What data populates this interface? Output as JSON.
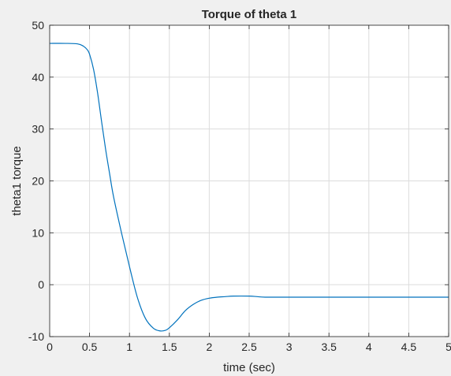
{
  "chart_data": {
    "type": "line",
    "title": "Torque of theta 1",
    "xlabel": "time (sec)",
    "ylabel": "theta1 torque",
    "xlim": [
      0,
      5
    ],
    "ylim": [
      -10,
      50
    ],
    "xticks": [
      0,
      0.5,
      1,
      1.5,
      2,
      2.5,
      3,
      3.5,
      4,
      4.5,
      5
    ],
    "xtick_labels": [
      "0",
      "0.5",
      "1",
      "1.5",
      "2",
      "2.5",
      "3",
      "3.5",
      "4",
      "4.5",
      "5"
    ],
    "yticks": [
      -10,
      0,
      10,
      20,
      30,
      40,
      50
    ],
    "ytick_labels": [
      "-10",
      "0",
      "10",
      "20",
      "30",
      "40",
      "50"
    ],
    "grid": true,
    "line_color": "#0072bd",
    "series": [
      {
        "x": [
          0,
          0.2,
          0.35,
          0.42,
          0.47,
          0.5,
          0.55,
          0.6,
          0.65,
          0.7,
          0.75,
          0.8,
          0.9,
          1.0,
          1.1,
          1.2,
          1.3,
          1.38,
          1.45,
          1.5,
          1.6,
          1.7,
          1.8,
          1.9,
          2.0,
          2.1,
          2.2,
          2.3,
          2.5,
          2.6,
          2.7,
          3.0,
          3.5,
          4.0,
          4.5,
          5.0
        ],
        "y": [
          46.5,
          46.5,
          46.4,
          46.0,
          45.3,
          44.4,
          41.5,
          37.0,
          31.5,
          26.2,
          21.5,
          17.0,
          10.0,
          3.5,
          -2.5,
          -6.5,
          -8.4,
          -8.9,
          -8.8,
          -8.3,
          -6.8,
          -5.0,
          -3.8,
          -3.0,
          -2.6,
          -2.4,
          -2.3,
          -2.2,
          -2.2,
          -2.3,
          -2.4,
          -2.4,
          -2.4,
          -2.4,
          -2.4,
          -2.4
        ]
      }
    ]
  }
}
